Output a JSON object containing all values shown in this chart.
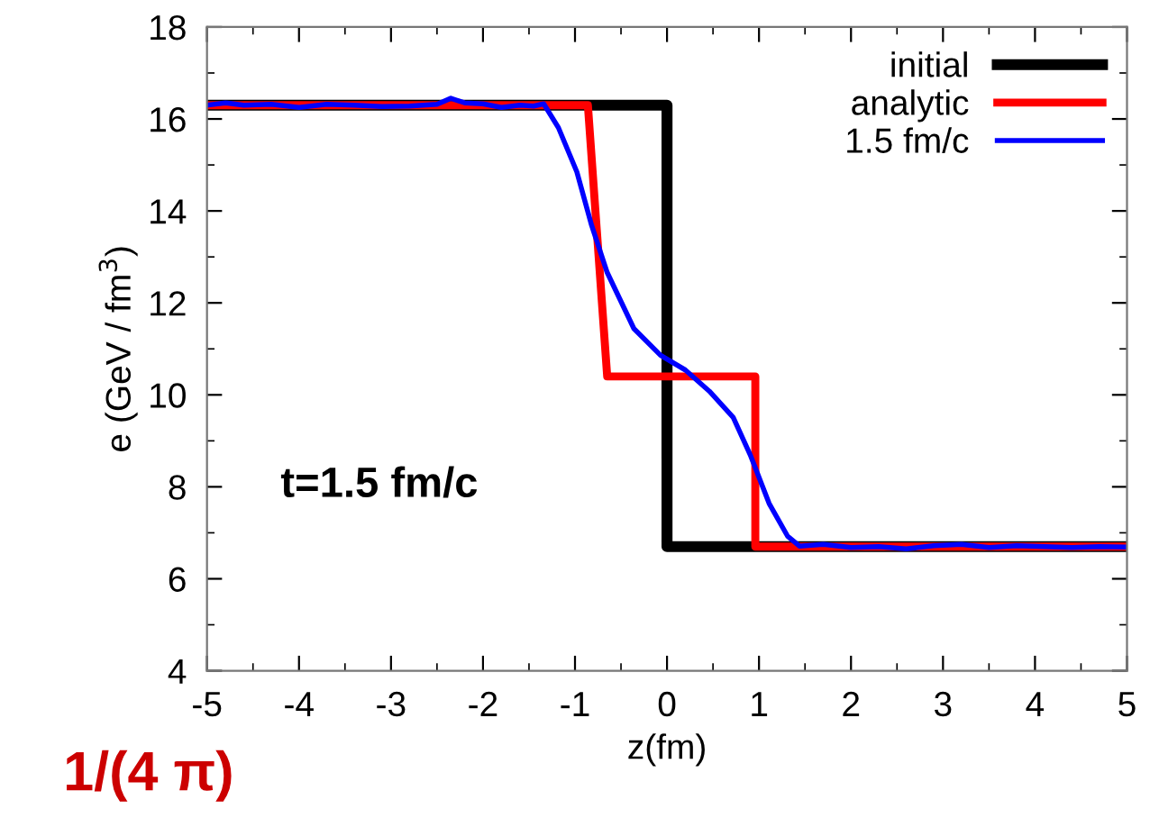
{
  "chart_data": {
    "type": "line",
    "xlabel": "z(fm)",
    "ylabel": "e (GeV / fm$^{3}$)",
    "xlim": [
      -5,
      5
    ],
    "ylim": [
      4,
      18
    ],
    "xticks": [
      -5,
      -4,
      -3,
      -2,
      -1,
      0,
      1,
      2,
      3,
      4,
      5
    ],
    "yticks": [
      4,
      6,
      8,
      10,
      12,
      14,
      16,
      18
    ],
    "grid": false,
    "legend": "top right",
    "line_style": "solid",
    "marker": "none",
    "annotations": [
      "t=1.5 fm/c",
      "1/(4 π)"
    ],
    "series": [
      {
        "name": "initial",
        "color": "#000000",
        "x": [
          -5,
          0,
          0,
          5
        ],
        "values": [
          16.3,
          16.3,
          6.7,
          6.7
        ]
      },
      {
        "name": "analytic",
        "color": "#ff0000",
        "x": [
          -5,
          -0.86,
          -0.65,
          0.96,
          0.96,
          5
        ],
        "values": [
          16.3,
          16.3,
          10.4,
          10.4,
          6.7,
          6.7
        ]
      },
      {
        "name": "1.5 fm/c",
        "color": "#0000ff",
        "x": [
          -5,
          -4.8,
          -4.6,
          -4.3,
          -4.0,
          -3.7,
          -3.4,
          -3.1,
          -2.8,
          -2.5,
          -2.35,
          -2.2,
          -2.0,
          -1.8,
          -1.6,
          -1.45,
          -1.34,
          -1.18,
          -0.98,
          -0.82,
          -0.65,
          -0.36,
          -0.07,
          0.2,
          0.46,
          0.72,
          0.91,
          1.11,
          1.31,
          1.44,
          1.7,
          2.0,
          2.3,
          2.6,
          2.9,
          3.2,
          3.5,
          3.8,
          4.1,
          4.4,
          4.7,
          5
        ],
        "values": [
          16.3,
          16.35,
          16.3,
          16.32,
          16.25,
          16.32,
          16.3,
          16.27,
          16.28,
          16.32,
          16.45,
          16.35,
          16.33,
          16.25,
          16.3,
          16.28,
          16.33,
          15.81,
          14.85,
          13.69,
          12.66,
          11.44,
          10.86,
          10.54,
          10.08,
          9.51,
          8.67,
          7.64,
          6.93,
          6.71,
          6.75,
          6.68,
          6.7,
          6.65,
          6.72,
          6.75,
          6.68,
          6.72,
          6.7,
          6.68,
          6.7,
          6.69
        ]
      }
    ]
  }
}
